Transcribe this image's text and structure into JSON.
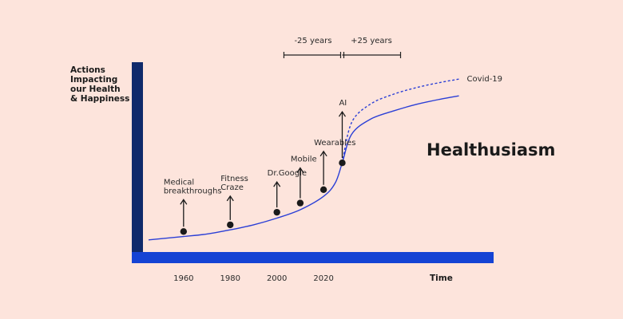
{
  "chart_data": {
    "type": "line",
    "title": "Healthusiasm",
    "ylabel_lines": [
      "Actions",
      "Impacting",
      "our Health",
      "& Happiness"
    ],
    "xlabel": "Time",
    "x_ticks": [
      1960,
      1980,
      2000,
      2020
    ],
    "xlim": [
      1945,
      2085
    ],
    "ylim": [
      0,
      100
    ],
    "series": [
      {
        "points": [
          [
            1945,
            2
          ],
          [
            1960,
            4
          ],
          [
            1970,
            5.5
          ],
          [
            1980,
            8
          ],
          [
            1990,
            11
          ],
          [
            2000,
            15
          ],
          [
            2010,
            20
          ],
          [
            2020,
            28
          ],
          [
            2025,
            36
          ],
          [
            2028,
            48
          ],
          [
            2032,
            65
          ],
          [
            2040,
            74
          ],
          [
            2050,
            79
          ],
          [
            2060,
            83
          ],
          [
            2070,
            86
          ],
          [
            2078,
            88
          ]
        ]
      },
      {
        "name": "Covid-19",
        "dashed": true,
        "points": [
          [
            2028,
            48
          ],
          [
            2032,
            72
          ],
          [
            2040,
            83
          ],
          [
            2050,
            89
          ],
          [
            2060,
            93
          ],
          [
            2070,
            96
          ],
          [
            2078,
            98
          ]
        ]
      }
    ],
    "events": [
      {
        "year": 1960,
        "y": 7,
        "lines": [
          "Medical",
          "breakthroughs"
        ]
      },
      {
        "year": 1980,
        "y": 11,
        "lines": [
          "Fitness",
          "Craze"
        ]
      },
      {
        "year": 2000,
        "y": 18.5,
        "lines": [
          "Dr.Google"
        ]
      },
      {
        "year": 2010,
        "y": 24,
        "lines": [
          "Mobile"
        ]
      },
      {
        "year": 2020,
        "y": 32,
        "lines": [
          "Wearables"
        ]
      },
      {
        "year": 2028,
        "y": 48,
        "lines": [
          "AI"
        ]
      }
    ],
    "spans": [
      {
        "label": "-25 years",
        "from": 2003,
        "to": 2028
      },
      {
        "label": "+25 years",
        "from": 2028,
        "to": 2053
      }
    ]
  }
}
